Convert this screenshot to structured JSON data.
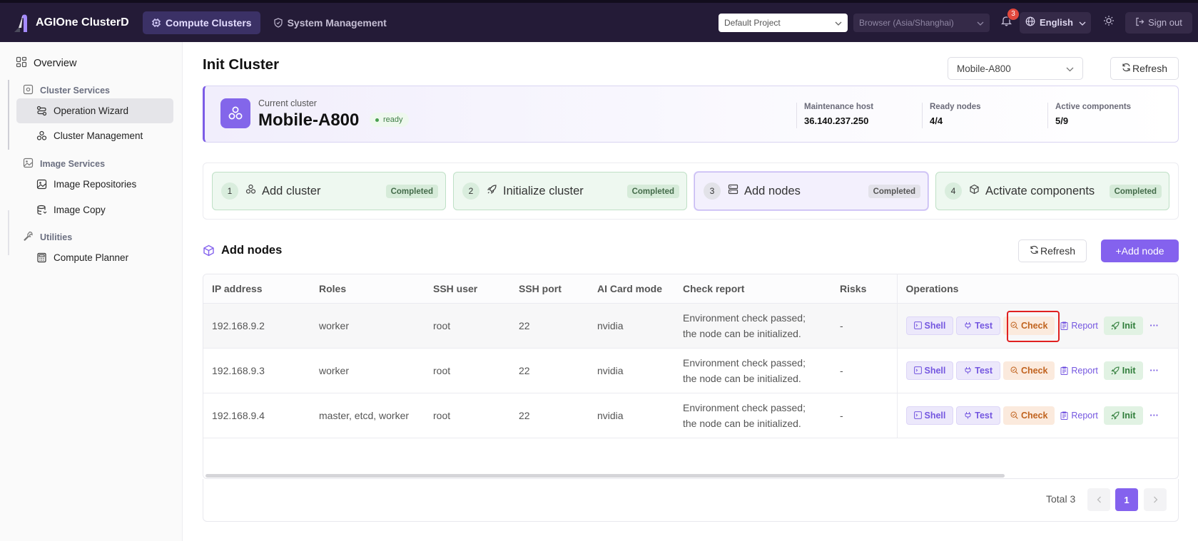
{
  "brand": {
    "name": "AGIOne ClusterD"
  },
  "nav": {
    "tabs": [
      {
        "label": "Compute Clusters",
        "active": true
      },
      {
        "label": "System Management",
        "active": false
      }
    ]
  },
  "topbar": {
    "project": "Default Project",
    "timezone": "Browser (Asia/Shanghai)",
    "notifications": "3",
    "language": "English",
    "sign_out": "Sign out"
  },
  "sidebar": {
    "overview": "Overview",
    "groups": [
      {
        "label": "Cluster Services",
        "items": [
          "Operation Wizard",
          "Cluster Management"
        ]
      },
      {
        "label": "Image Services",
        "items": [
          "Image Repositories",
          "Image Copy"
        ]
      },
      {
        "label": "Utilities",
        "items": [
          "Compute Planner"
        ]
      }
    ],
    "active_item": "Operation Wizard"
  },
  "page": {
    "title": "Init Cluster",
    "cluster_select": "Mobile-A800",
    "refresh": "Refresh"
  },
  "cluster": {
    "current_label": "Current cluster",
    "name": "Mobile-A800",
    "status": "ready",
    "stats": [
      {
        "label": "Maintenance host",
        "value": "36.140.237.250"
      },
      {
        "label": "Ready nodes",
        "value": "4/4"
      },
      {
        "label": "Active components",
        "value": "5/9"
      }
    ]
  },
  "steps": [
    {
      "num": "1",
      "label": "Add cluster",
      "status": "Completed"
    },
    {
      "num": "2",
      "label": "Initialize cluster",
      "status": "Completed"
    },
    {
      "num": "3",
      "label": "Add nodes",
      "status": "Completed",
      "current": true
    },
    {
      "num": "4",
      "label": "Activate components",
      "status": "Completed"
    }
  ],
  "section": {
    "title": "Add nodes",
    "refresh": "Refresh",
    "add_node": "+Add node"
  },
  "table": {
    "columns": [
      "IP address",
      "Roles",
      "SSH user",
      "SSH port",
      "AI Card mode",
      "Check report",
      "Risks",
      "Operations"
    ],
    "rows": [
      {
        "ip": "192.168.9.2",
        "roles": "worker",
        "user": "root",
        "port": "22",
        "mode": "nvidia",
        "report_1": "Environment check passed;",
        "report_2": "the node can be initialized.",
        "risks": "-"
      },
      {
        "ip": "192.168.9.3",
        "roles": "worker",
        "user": "root",
        "port": "22",
        "mode": "nvidia",
        "report_1": "Environment check passed;",
        "report_2": "the node can be initialized.",
        "risks": "-"
      },
      {
        "ip": "192.168.9.4",
        "roles": "master, etcd, worker",
        "user": "root",
        "port": "22",
        "mode": "nvidia",
        "report_1": "Environment check passed;",
        "report_2": "the node can be initialized.",
        "risks": "-"
      }
    ],
    "ops": {
      "shell": "Shell",
      "test": "Test",
      "check": "Check",
      "report": "Report",
      "init": "Init",
      "more": "···"
    }
  },
  "pagination": {
    "total": "Total 3",
    "page": "1"
  },
  "colors": {
    "accent": "#8462ee",
    "topbar": "#241b37",
    "success_bg": "#eef8f0",
    "check_bg": "#fbeadd",
    "highlight": "#e02020"
  }
}
